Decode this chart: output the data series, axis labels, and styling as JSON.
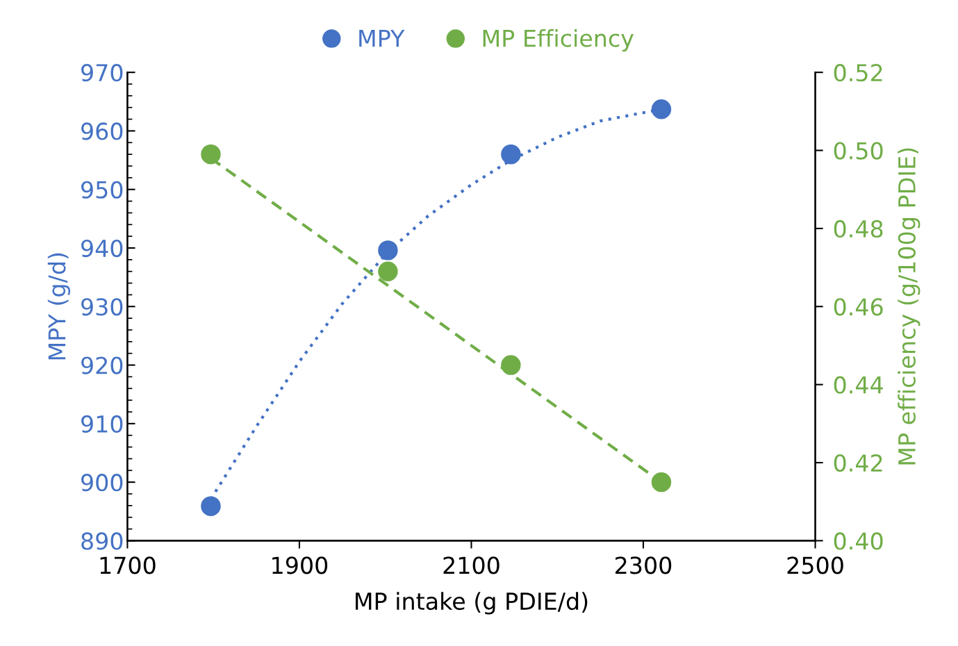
{
  "chart_data": {
    "type": "scatter",
    "xlabel": "MP intake (g PDIE/d)",
    "ylabel": "MPY (g/d)",
    "y2label": "MP efficiency (g/100g PDIE)",
    "xlim": [
      1700,
      2500
    ],
    "xticks": [
      1700,
      1900,
      2100,
      2300,
      2500
    ],
    "ylim": [
      890,
      970
    ],
    "yticks": [
      890,
      {
        "value": 892,
        "label": null
      },
      {
        "value": 894,
        "label": null
      },
      {
        "value": 896,
        "label": null
      },
      {
        "value": 898,
        "label": null
      },
      900,
      {
        "value": 902,
        "label": null
      },
      {
        "value": 904,
        "label": null
      },
      {
        "value": 906,
        "label": null
      },
      {
        "value": 908,
        "label": null
      },
      910,
      {
        "value": 912,
        "label": null
      },
      {
        "value": 914,
        "label": null
      },
      {
        "value": 916,
        "label": null
      },
      {
        "value": 918,
        "label": null
      },
      920,
      {
        "value": 922,
        "label": null
      },
      {
        "value": 924,
        "label": null
      },
      {
        "value": 926,
        "label": null
      },
      {
        "value": 928,
        "label": null
      },
      930,
      {
        "value": 932,
        "label": null
      },
      {
        "value": 934,
        "label": null
      },
      {
        "value": 936,
        "label": null
      },
      {
        "value": 938,
        "label": null
      },
      940,
      {
        "value": 942,
        "label": null
      },
      {
        "value": 944,
        "label": null
      },
      {
        "value": 946,
        "label": null
      },
      {
        "value": 948,
        "label": null
      },
      950,
      {
        "value": 952,
        "label": null
      },
      {
        "value": 954,
        "label": null
      },
      {
        "value": 956,
        "label": null
      },
      {
        "value": 958,
        "label": null
      },
      960,
      {
        "value": 962,
        "label": null
      },
      {
        "value": 964,
        "label": null
      },
      {
        "value": 966,
        "label": null
      },
      {
        "value": 968,
        "label": null
      },
      970
    ],
    "y2lim": [
      0.4,
      0.52
    ],
    "y2ticks": [
      {
        "value": 0.4,
        "label": "0.40"
      },
      {
        "value": 0.42,
        "label": "0.42"
      },
      {
        "value": 0.44,
        "label": "0.44"
      },
      {
        "value": 0.46,
        "label": "0.46"
      },
      {
        "value": 0.48,
        "label": "0.48"
      },
      {
        "value": 0.5,
        "label": "0.50"
      },
      {
        "value": 0.52,
        "label": "0.52"
      }
    ],
    "legend": "top",
    "grid": false,
    "series": [
      {
        "type": "line",
        "line_style": "dotted",
        "marker": "none",
        "color": "#4472c4",
        "x": [
          1797,
          1850,
          1900,
          1950,
          2003,
          2050,
          2100,
          2146,
          2200,
          2250,
          2321
        ],
        "values": [
          897.1,
          909.5,
          920.6,
          930.5,
          939.3,
          945.5,
          950.8,
          955.0,
          958.9,
          961.7,
          963.7
        ]
      },
      {
        "type": "line",
        "line_style": "dashed",
        "marker": "none",
        "color": "#70ad47",
        "axis": "y2",
        "x": [
          1797,
          2321
        ],
        "values": [
          0.498,
          0.415
        ]
      },
      {
        "name": "MPY",
        "marker": "circle",
        "color": "#4472c4",
        "x": [
          1797,
          2003,
          2146,
          2321
        ],
        "values": [
          895.9,
          939.6,
          956.0,
          963.7
        ]
      },
      {
        "name": "MP Efficiency",
        "marker": "circle",
        "color": "#70ad47",
        "axis": "y2",
        "x": [
          1797,
          2003,
          2146,
          2321
        ],
        "values": [
          0.499,
          0.469,
          0.445,
          0.415
        ]
      }
    ]
  }
}
